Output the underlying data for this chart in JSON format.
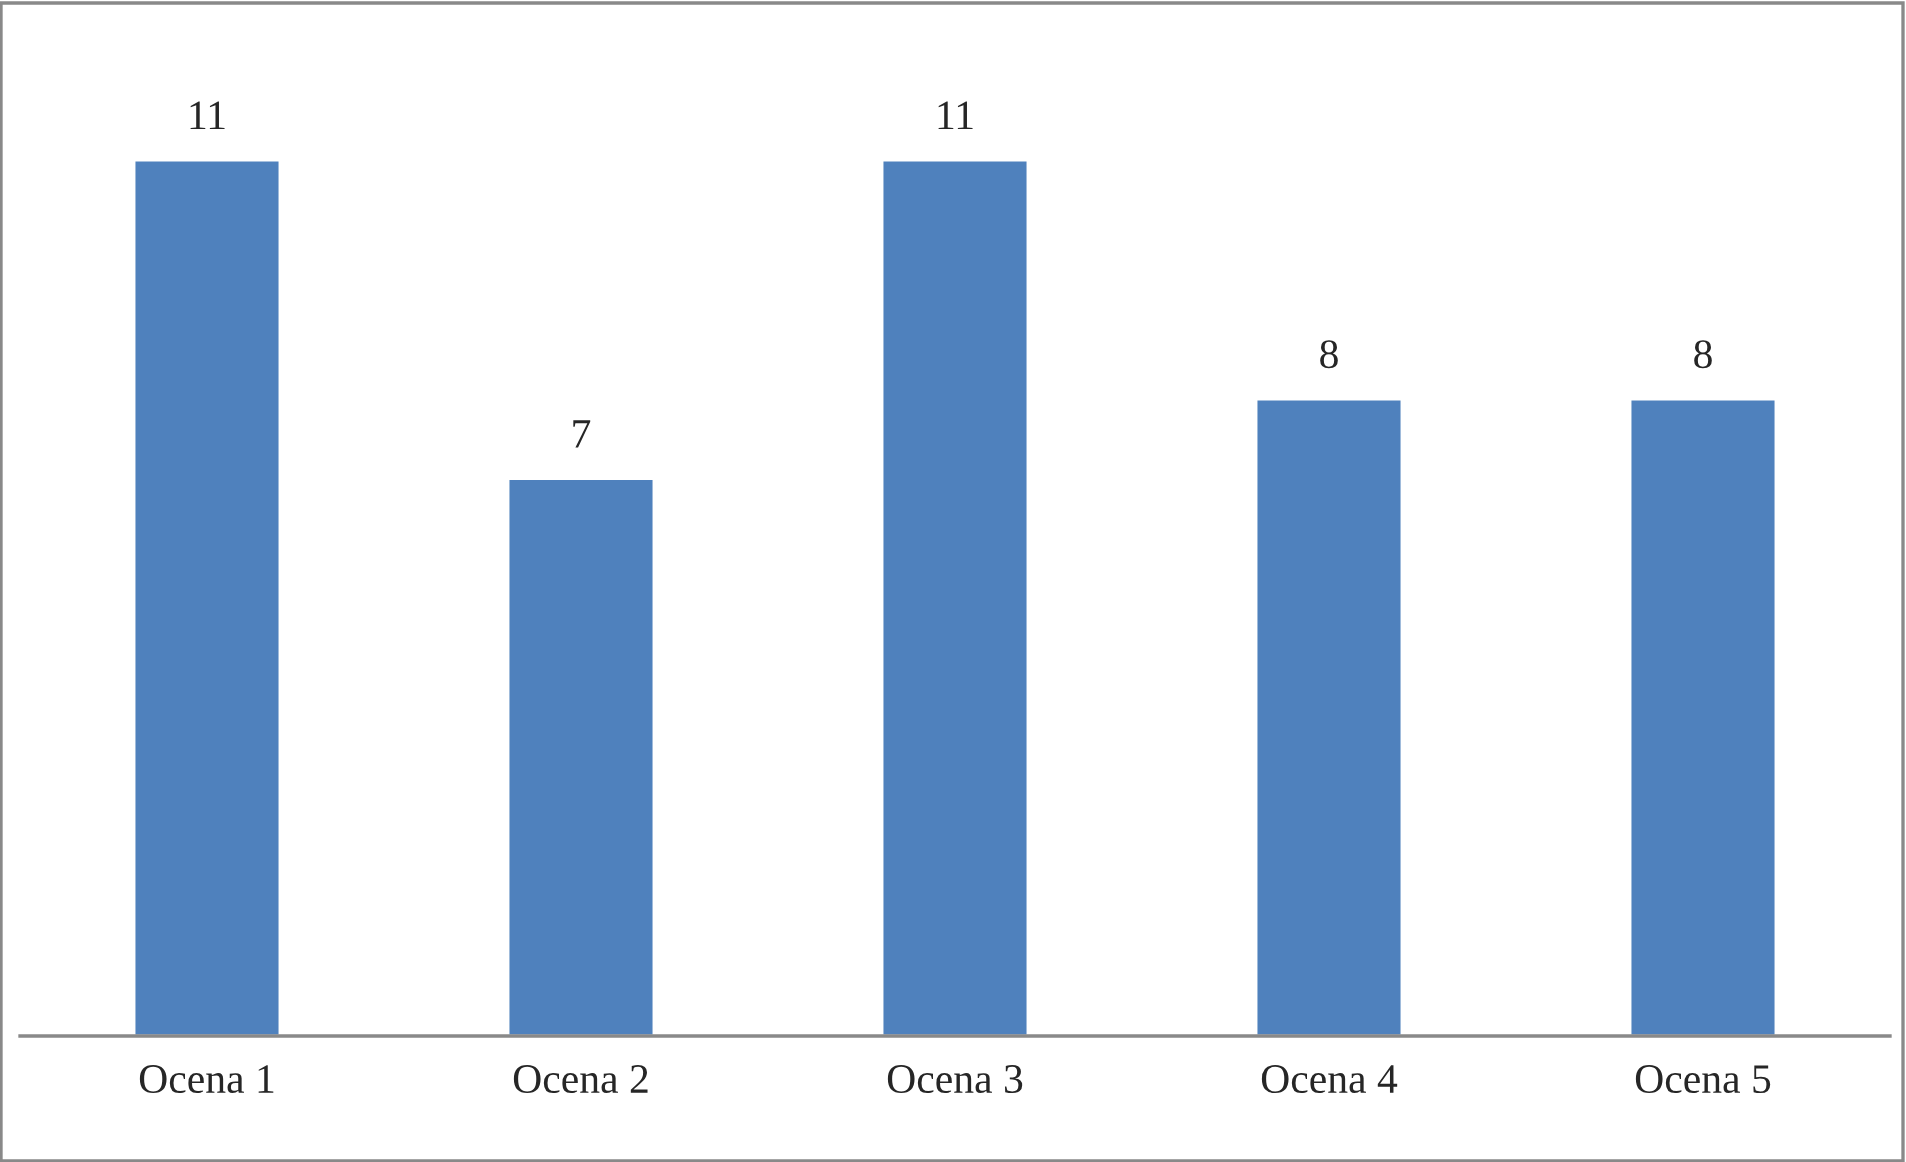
{
  "chart_data": {
    "type": "bar",
    "categories": [
      "Ocena 1",
      "Ocena 2",
      "Ocena 3",
      "Ocena 4",
      "Ocena 5"
    ],
    "values": [
      11,
      7,
      11,
      8,
      8
    ],
    "color": "#4f81bd",
    "data_labels": true,
    "grid": false
  }
}
